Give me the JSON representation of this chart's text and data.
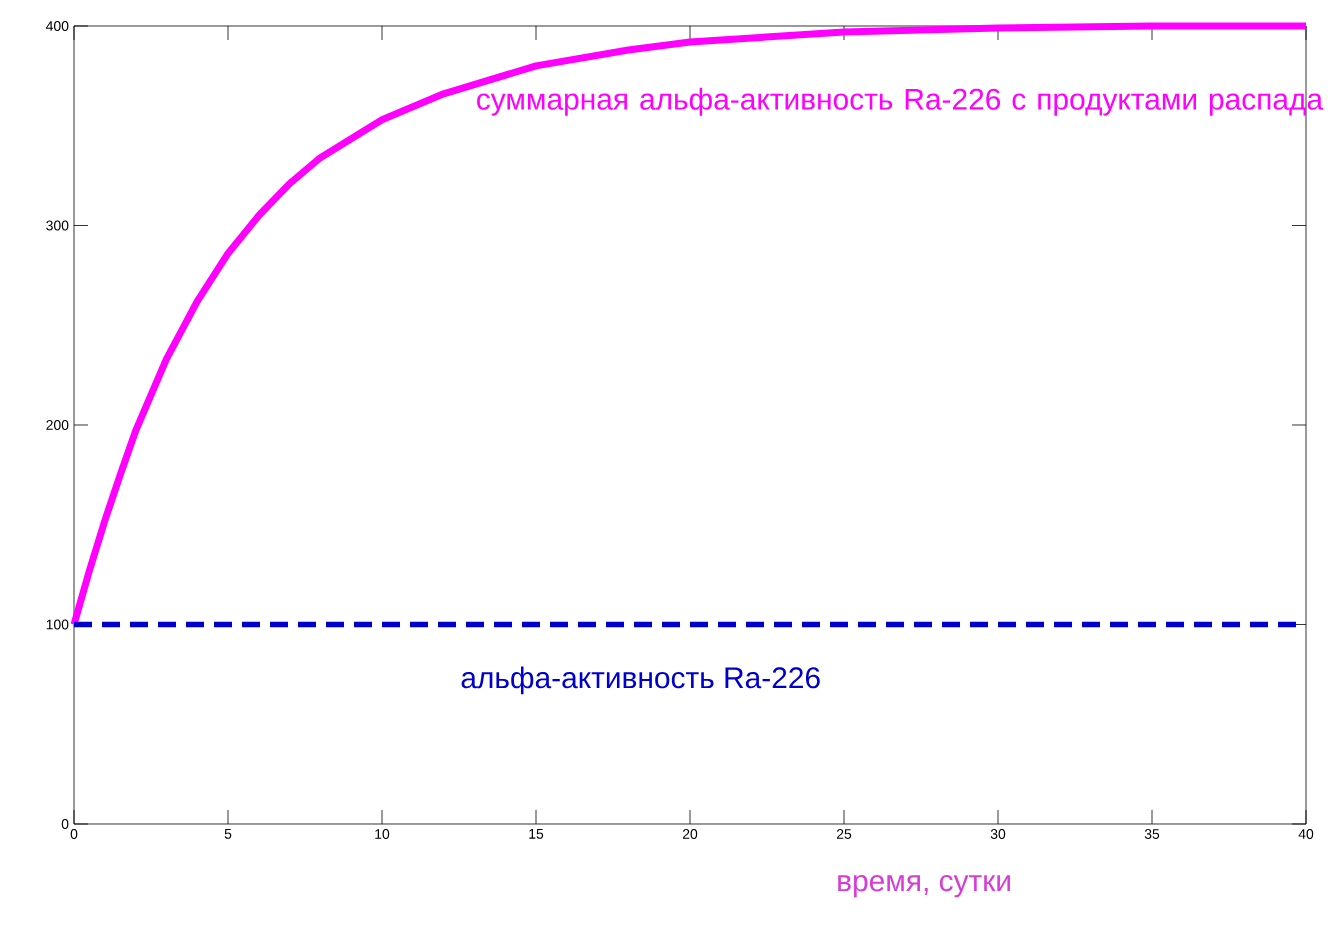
{
  "chart_data": {
    "type": "line",
    "xlabel": "время, сутки",
    "xlim": [
      0,
      40
    ],
    "xticks": [
      0,
      5,
      10,
      15,
      20,
      25,
      30,
      35,
      40
    ],
    "ylim": [
      0,
      400
    ],
    "yticks": [
      0,
      100,
      200,
      300,
      400
    ],
    "grid": false,
    "legend": false,
    "marker": "none",
    "series": [
      {
        "name": "суммарная альфа-активность Ra-226 с продуктами распада",
        "color": "#ff00ff",
        "line_style": "solid",
        "x": [
          0,
          0.5,
          1,
          1.5,
          2,
          3,
          4,
          5,
          6,
          7,
          8,
          10,
          12,
          15,
          18,
          20,
          25,
          30,
          35,
          40
        ],
        "values": [
          100,
          127,
          152,
          175,
          197,
          233,
          262,
          286,
          305,
          321,
          334,
          353,
          366,
          380,
          388,
          392,
          397,
          399,
          400,
          400
        ]
      },
      {
        "name": "альфа-активность Ra-226",
        "color": "#0000cc",
        "line_style": "dashed",
        "x": [
          0,
          40
        ],
        "values": [
          100,
          100
        ]
      }
    ]
  }
}
